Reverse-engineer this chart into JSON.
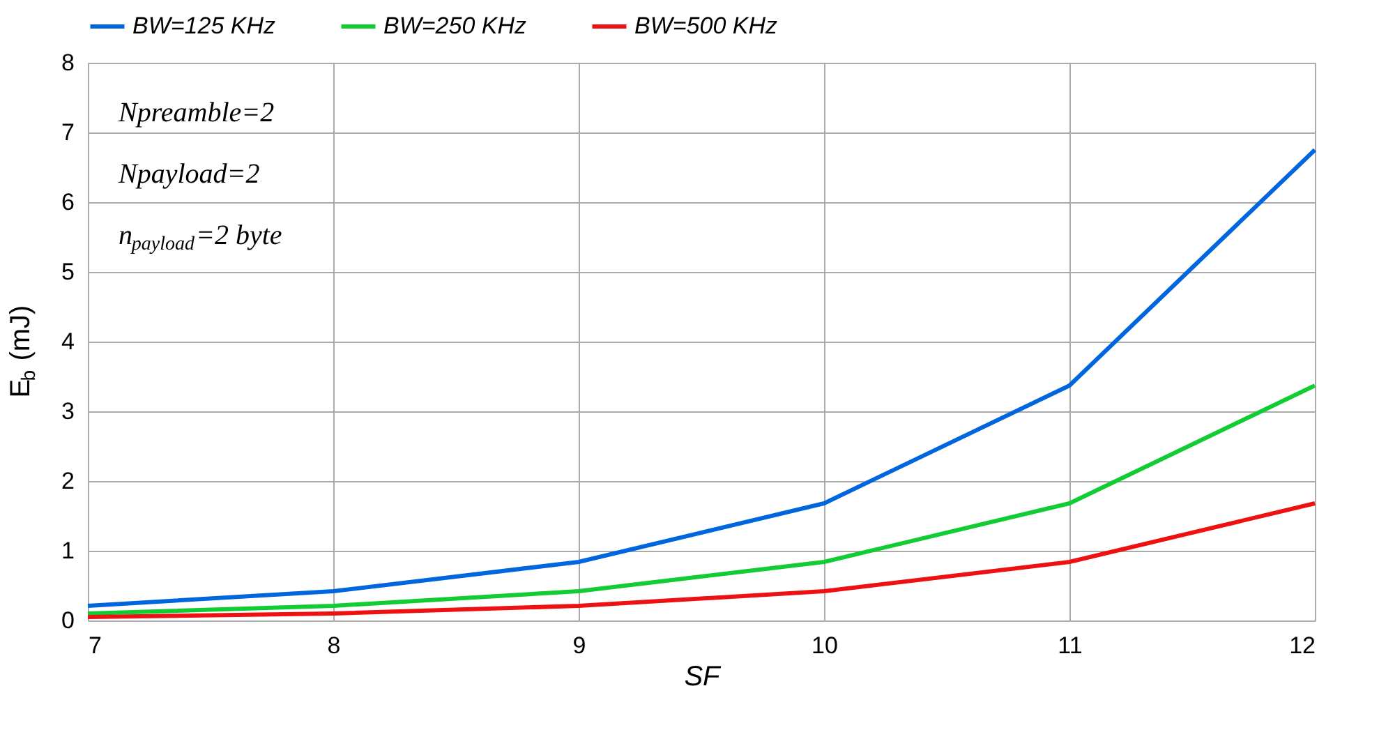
{
  "chart_data": {
    "type": "line",
    "xlabel": "SF",
    "ylabel": "E$_{b}$ (mJ)",
    "x": [
      7,
      8,
      9,
      10,
      11,
      12
    ],
    "series": [
      {
        "name": "BW=125 KHz",
        "color": "#0066dd",
        "values": [
          0.21,
          0.42,
          0.84,
          1.68,
          3.37,
          6.75
        ]
      },
      {
        "name": "BW=250 KHz",
        "color": "#11cc33",
        "values": [
          0.1,
          0.21,
          0.42,
          0.84,
          1.68,
          3.37
        ]
      },
      {
        "name": "BW=500 KHz",
        "color": "#ee1111",
        "values": [
          0.05,
          0.1,
          0.21,
          0.42,
          0.84,
          1.68
        ]
      }
    ],
    "xlim": [
      7,
      12
    ],
    "xticks": [
      7,
      8,
      9,
      10,
      11,
      12
    ],
    "ylim": [
      0,
      8
    ],
    "yticks": [
      0,
      1,
      2,
      3,
      4,
      5,
      6,
      7,
      8
    ],
    "grid": true,
    "legend": "top",
    "marker": "none",
    "line_style": "solid",
    "annotations": [
      "Npreamble=2",
      "Npayload=2",
      "n$_{payload}$=2 byte"
    ]
  }
}
